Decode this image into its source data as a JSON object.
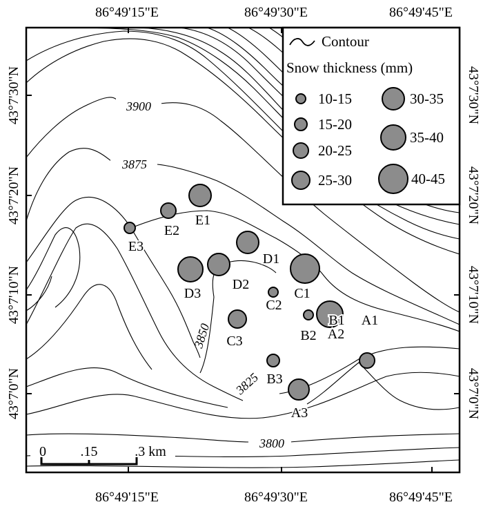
{
  "axes": {
    "top_ticks": [
      "86°49'15\"E",
      "86°49'30\"E",
      "86°49'45\"E"
    ],
    "bottom_ticks": [
      "86°49'15\"E",
      "86°49'30\"E",
      "86°49'45\"E"
    ],
    "left_ticks": [
      "43°7'30\"N",
      "43°7'20\"N",
      "43°7'10\"N",
      "43°7'0\"N"
    ],
    "right_ticks": [
      "43°7'30\"N",
      "43°7'20\"N",
      "43°7'10\"N",
      "43°7'0\"N"
    ]
  },
  "legend": {
    "contour_label": "Contour",
    "title": "Snow thickness (mm)",
    "classes": [
      "10-15",
      "15-20",
      "20-25",
      "25-30",
      "30-35",
      "35-40",
      "40-45"
    ]
  },
  "contour_labels": [
    "3900",
    "3875",
    "3850",
    "3825",
    "3800"
  ],
  "scale_bar": {
    "labels": [
      "0",
      ".15",
      ".3 km"
    ]
  },
  "sites": [
    {
      "label": "A1",
      "class": "15-20"
    },
    {
      "label": "A2",
      "class": "10-15"
    },
    {
      "label": "A3",
      "class": "30-35"
    },
    {
      "label": "B1",
      "class": "35-40"
    },
    {
      "label": "B2",
      "class": "10-15"
    },
    {
      "label": "B3",
      "class": "10-15"
    },
    {
      "label": "C1",
      "class": "40-45"
    },
    {
      "label": "C2",
      "class": "10-15"
    },
    {
      "label": "C3",
      "class": "25-30"
    },
    {
      "label": "D1",
      "class": "30-35"
    },
    {
      "label": "D2",
      "class": "30-35"
    },
    {
      "label": "D3",
      "class": "35-40"
    },
    {
      "label": "E1",
      "class": "30-35"
    },
    {
      "label": "E2",
      "class": "15-20"
    },
    {
      "label": "E3",
      "class": "10-15"
    }
  ],
  "colors": {
    "marker_fill": "#8c8c8c",
    "line": "#000000"
  }
}
